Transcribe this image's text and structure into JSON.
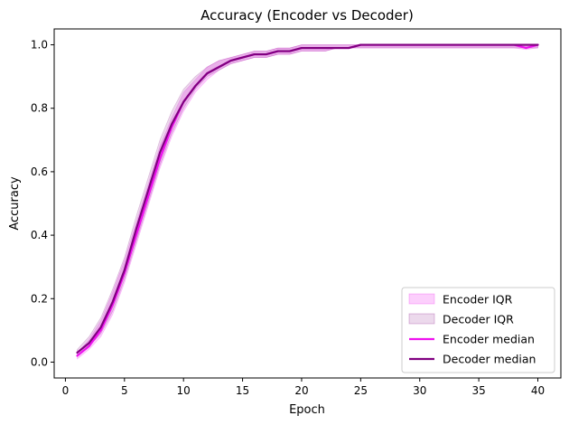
{
  "chart_data": {
    "type": "line",
    "title": "Accuracy (Encoder vs Decoder)",
    "xlabel": "Epoch",
    "ylabel": "Accuracy",
    "xlim": [
      -0.95,
      41.95
    ],
    "ylim": [
      -0.05,
      1.05
    ],
    "xticks": [
      0,
      5,
      10,
      15,
      20,
      25,
      30,
      35,
      40
    ],
    "yticks": [
      0.0,
      0.2,
      0.4,
      0.6,
      0.8,
      1.0
    ],
    "grid": false,
    "legend_position": "lower-right",
    "x": [
      1,
      2,
      3,
      4,
      5,
      6,
      7,
      8,
      9,
      10,
      11,
      12,
      13,
      14,
      15,
      16,
      17,
      18,
      19,
      20,
      21,
      22,
      23,
      24,
      25,
      26,
      27,
      28,
      29,
      30,
      31,
      32,
      33,
      34,
      35,
      36,
      37,
      38,
      39,
      40
    ],
    "series": [
      {
        "name": "Encoder median",
        "color": "#ee11ee",
        "values": [
          0.02,
          0.05,
          0.1,
          0.18,
          0.28,
          0.4,
          0.52,
          0.64,
          0.74,
          0.82,
          0.87,
          0.91,
          0.93,
          0.95,
          0.96,
          0.97,
          0.97,
          0.98,
          0.98,
          0.99,
          0.99,
          0.99,
          0.99,
          0.99,
          1.0,
          1.0,
          1.0,
          1.0,
          1.0,
          1.0,
          1.0,
          1.0,
          1.0,
          1.0,
          1.0,
          1.0,
          1.0,
          1.0,
          0.99,
          1.0
        ]
      },
      {
        "name": "Decoder median",
        "color": "#800080",
        "values": [
          0.03,
          0.06,
          0.11,
          0.19,
          0.29,
          0.42,
          0.54,
          0.66,
          0.75,
          0.82,
          0.87,
          0.91,
          0.93,
          0.95,
          0.96,
          0.97,
          0.97,
          0.98,
          0.98,
          0.99,
          0.99,
          0.99,
          0.99,
          0.99,
          1.0,
          1.0,
          1.0,
          1.0,
          1.0,
          1.0,
          1.0,
          1.0,
          1.0,
          1.0,
          1.0,
          1.0,
          1.0,
          1.0,
          1.0,
          1.0
        ]
      }
    ],
    "bands": [
      {
        "name": "Encoder IQR",
        "color": "#ee11ee",
        "lower": [
          0.01,
          0.04,
          0.08,
          0.15,
          0.25,
          0.37,
          0.49,
          0.61,
          0.71,
          0.79,
          0.85,
          0.89,
          0.92,
          0.94,
          0.95,
          0.96,
          0.96,
          0.97,
          0.97,
          0.98,
          0.98,
          0.98,
          0.99,
          0.99,
          0.99,
          0.99,
          0.99,
          0.99,
          0.99,
          0.99,
          0.99,
          0.99,
          0.99,
          0.99,
          0.99,
          0.99,
          0.99,
          0.99,
          0.985,
          0.99
        ],
        "upper": [
          0.03,
          0.07,
          0.13,
          0.22,
          0.32,
          0.44,
          0.56,
          0.68,
          0.77,
          0.85,
          0.89,
          0.93,
          0.95,
          0.96,
          0.97,
          0.98,
          0.98,
          0.99,
          0.99,
          1.0,
          1.0,
          1.0,
          1.0,
          1.0,
          1.0,
          1.0,
          1.0,
          1.0,
          1.0,
          1.0,
          1.0,
          1.0,
          1.0,
          1.0,
          1.0,
          1.0,
          1.0,
          1.0,
          1.0,
          1.0
        ]
      },
      {
        "name": "Decoder IQR",
        "color": "#800080",
        "lower": [
          0.02,
          0.05,
          0.09,
          0.16,
          0.26,
          0.38,
          0.5,
          0.62,
          0.72,
          0.8,
          0.86,
          0.9,
          0.92,
          0.94,
          0.95,
          0.96,
          0.96,
          0.97,
          0.97,
          0.98,
          0.98,
          0.98,
          0.99,
          0.99,
          0.99,
          0.99,
          0.99,
          0.99,
          0.99,
          0.99,
          0.99,
          0.99,
          0.99,
          0.99,
          0.99,
          0.99,
          0.99,
          0.99,
          0.99,
          0.99
        ],
        "upper": [
          0.04,
          0.08,
          0.14,
          0.23,
          0.33,
          0.46,
          0.58,
          0.7,
          0.79,
          0.86,
          0.9,
          0.93,
          0.95,
          0.96,
          0.97,
          0.98,
          0.98,
          0.99,
          0.99,
          1.0,
          1.0,
          1.0,
          1.0,
          1.0,
          1.0,
          1.0,
          1.0,
          1.0,
          1.0,
          1.0,
          1.0,
          1.0,
          1.0,
          1.0,
          1.0,
          1.0,
          1.0,
          1.0,
          1.0,
          1.0
        ]
      }
    ],
    "legend": [
      {
        "label": "Encoder IQR",
        "kind": "patch",
        "color": "#ee11ee"
      },
      {
        "label": "Decoder IQR",
        "kind": "patch",
        "color": "#800080"
      },
      {
        "label": "Encoder median",
        "kind": "line",
        "color": "#ee11ee"
      },
      {
        "label": "Decoder median",
        "kind": "line",
        "color": "#800080"
      }
    ]
  }
}
